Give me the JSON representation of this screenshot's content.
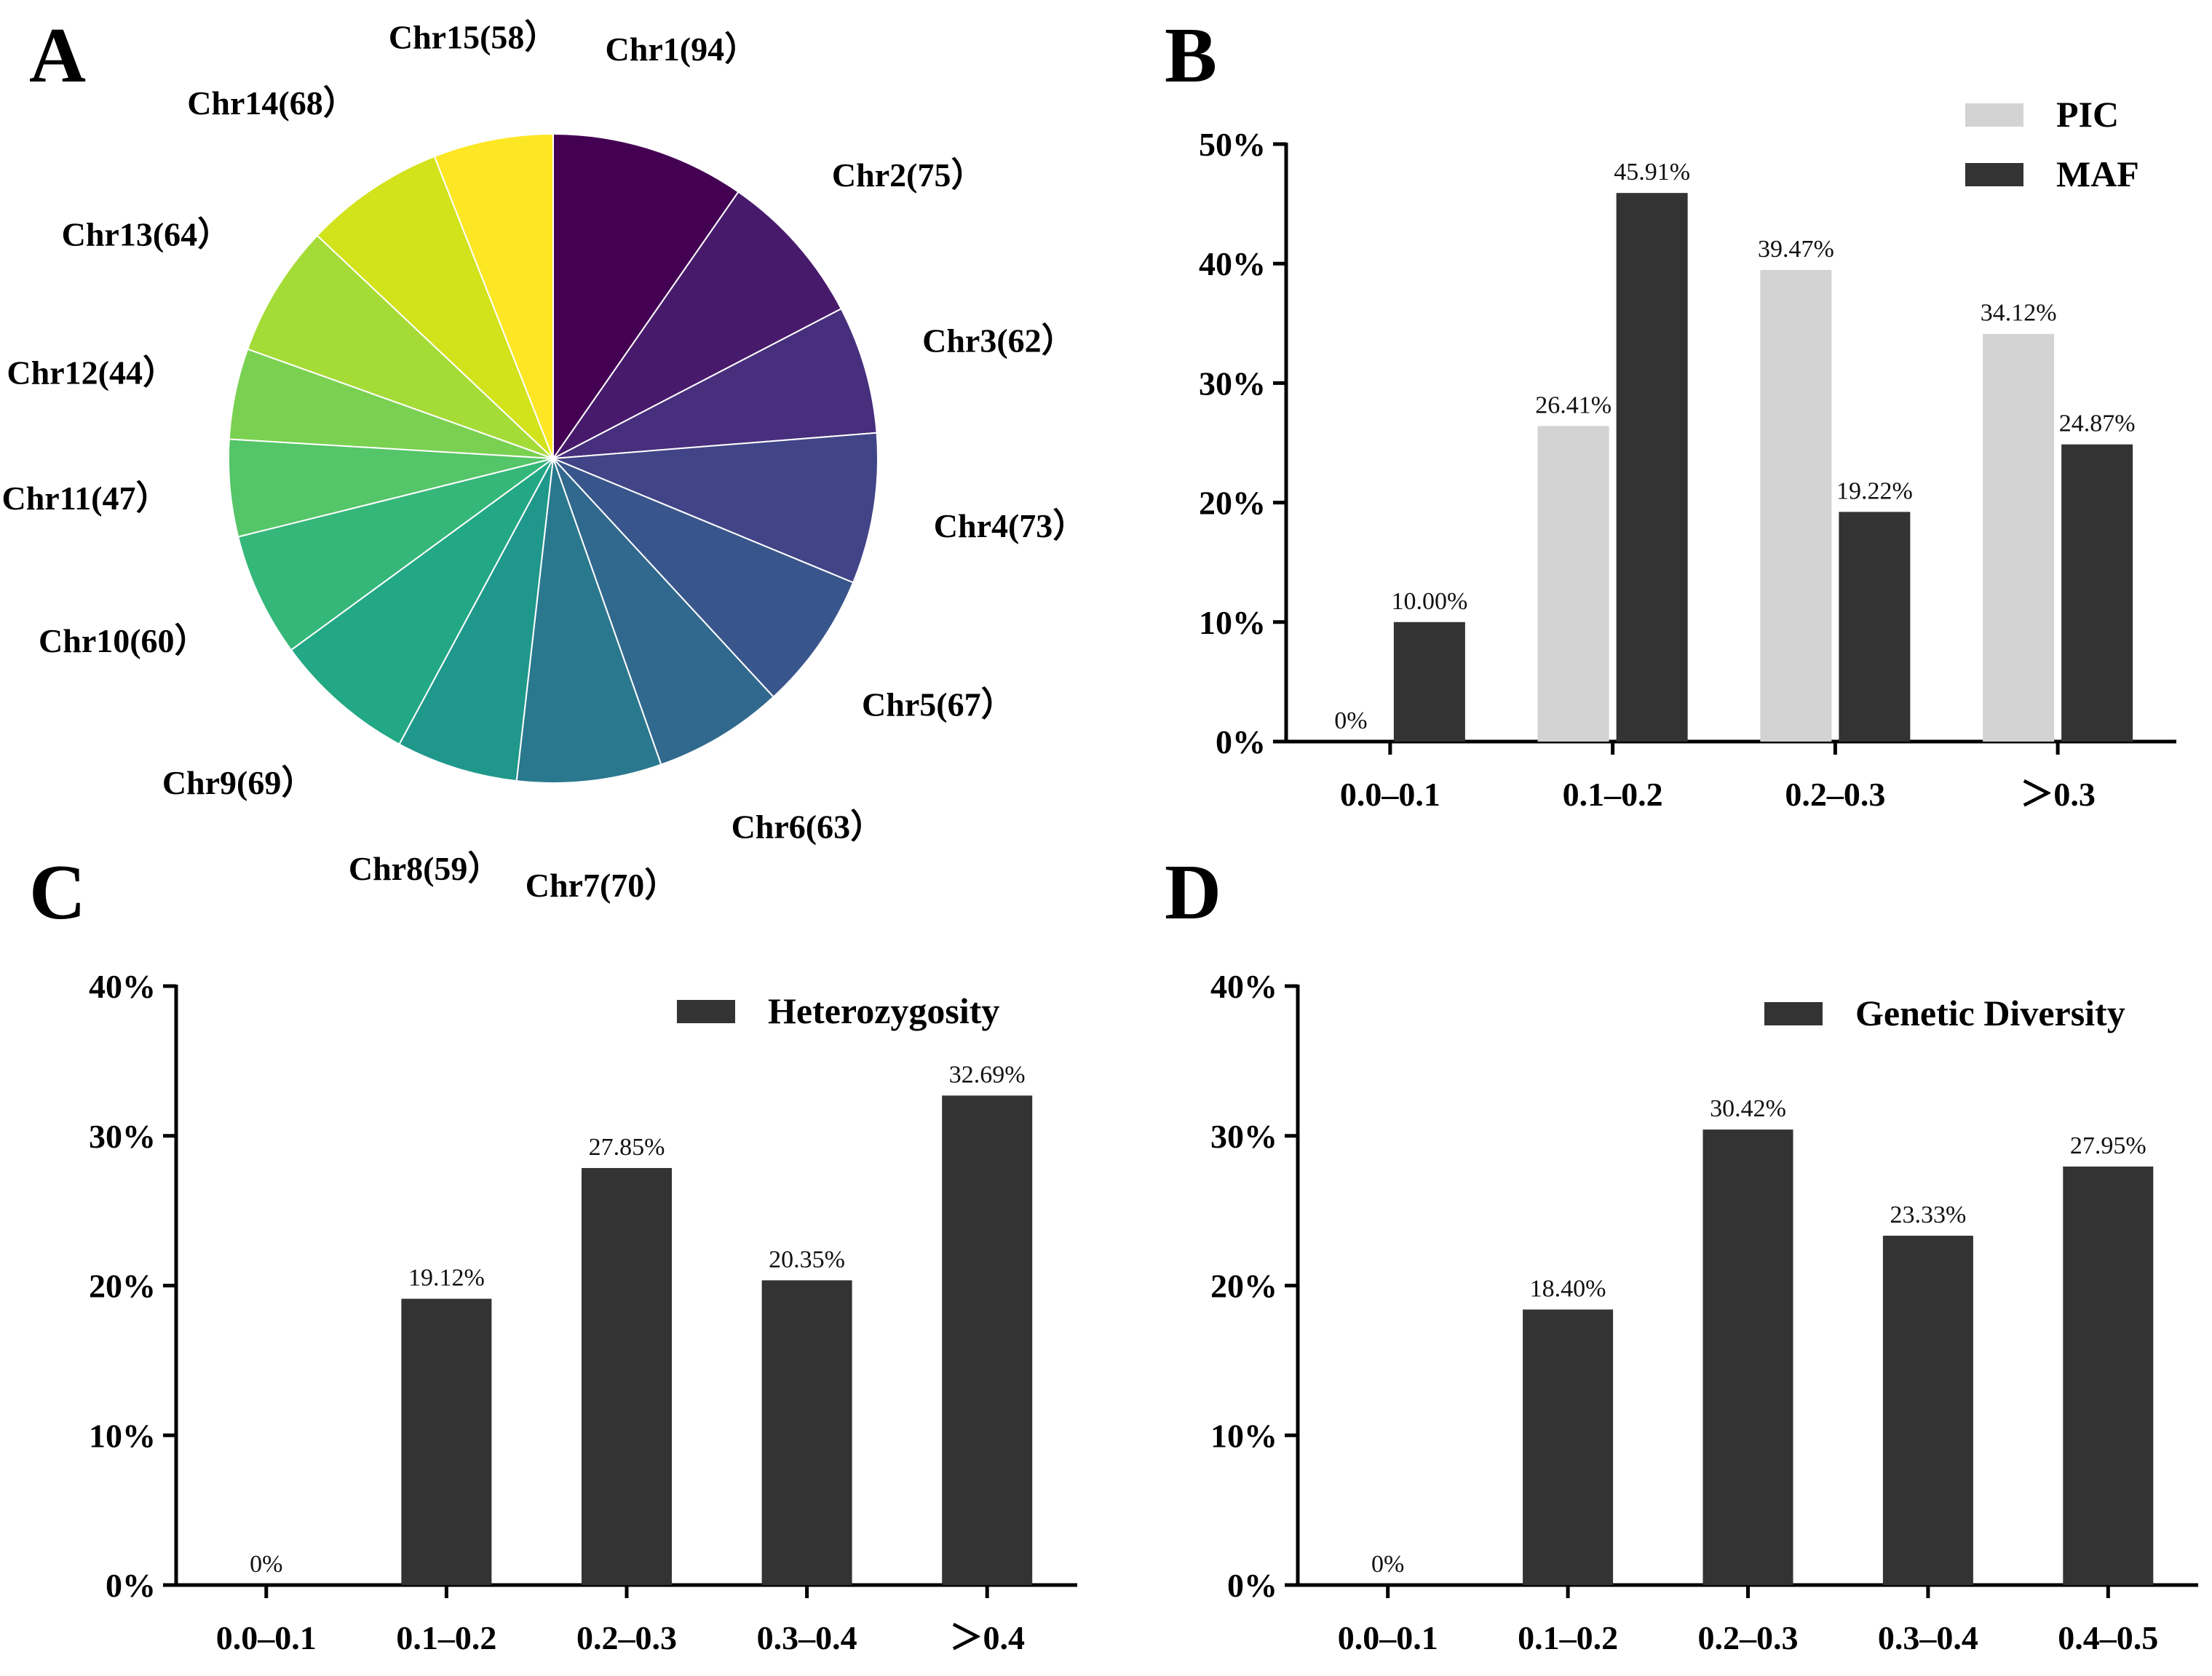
{
  "chart_data": [
    {
      "panel": "A",
      "type": "pie",
      "categories": [
        "Chr1",
        "Chr2",
        "Chr3",
        "Chr4",
        "Chr5",
        "Chr6",
        "Chr7",
        "Chr8",
        "Chr9",
        "Chr10",
        "Chr11",
        "Chr12",
        "Chr13",
        "Chr14",
        "Chr15"
      ],
      "values": [
        94,
        75,
        62,
        73,
        67,
        63,
        70,
        59,
        69,
        60,
        47,
        44,
        64,
        68,
        58
      ],
      "labels": [
        "Chr1(94）",
        "Chr2(75）",
        "Chr3(62）",
        "Chr4(73）",
        "Chr5(67）",
        "Chr6(63）",
        "Chr7(70）",
        "Chr8(59）",
        "Chr9(69）",
        "Chr10(60）",
        "Chr11(47）",
        "Chr12(44）",
        "Chr13(64）",
        "Chr14(68）",
        "Chr15(58）"
      ],
      "colors": [
        "#440154",
        "#481a6c",
        "#472f7d",
        "#414487",
        "#39568c",
        "#31688e",
        "#2a788e",
        "#23888e",
        "#1f988b",
        "#22a884",
        "#35b779",
        "#54c568",
        "#7ad151",
        "#a5db36",
        "#d2e21b",
        "#fde725"
      ]
    },
    {
      "panel": "B",
      "type": "bar",
      "categories": [
        "0.0–0.1",
        "0.1–0.2",
        "0.2–0.3",
        "＞0.3"
      ],
      "series": [
        {
          "name": "PIC",
          "color": "#d3d3d3",
          "values": [
            0,
            26.41,
            39.47,
            34.12
          ],
          "labels": [
            "0%",
            "26.41%",
            "39.47%",
            "34.12%"
          ]
        },
        {
          "name": "MAF",
          "color": "#333333",
          "values": [
            10.0,
            45.91,
            19.22,
            24.87
          ],
          "labels": [
            "10.00%",
            "45.91%",
            "19.22%",
            "24.87%"
          ]
        }
      ],
      "ylim": [
        0,
        50
      ],
      "yticks": [
        "0%",
        "10%",
        "20%",
        "30%",
        "40%",
        "50%"
      ],
      "legend": "top-right"
    },
    {
      "panel": "C",
      "type": "bar",
      "categories": [
        "0.0–0.1",
        "0.1–0.2",
        "0.2–0.3",
        "0.3–0.4",
        "＞0.4"
      ],
      "series": [
        {
          "name": "Heterozygosity",
          "color": "#333333",
          "values": [
            0,
            19.12,
            27.85,
            20.35,
            32.69
          ],
          "labels": [
            "0%",
            "19.12%",
            "27.85%",
            "20.35%",
            "32.69%"
          ]
        }
      ],
      "ylim": [
        0,
        40
      ],
      "yticks": [
        "0%",
        "10%",
        "20%",
        "30%",
        "40%"
      ],
      "legend": "top-right"
    },
    {
      "panel": "D",
      "type": "bar",
      "categories": [
        "0.0–0.1",
        "0.1–0.2",
        "0.2–0.3",
        "0.3–0.4",
        "0.4–0.5"
      ],
      "series": [
        {
          "name": "Genetic Diversity",
          "color": "#333333",
          "values": [
            0,
            18.4,
            30.42,
            23.33,
            27.95
          ],
          "labels": [
            "0%",
            "18.40%",
            "30.42%",
            "23.33%",
            "27.95%"
          ]
        }
      ],
      "ylim": [
        0,
        40
      ],
      "yticks": [
        "0%",
        "10%",
        "20%",
        "30%",
        "40%"
      ],
      "legend": "top-right"
    }
  ]
}
